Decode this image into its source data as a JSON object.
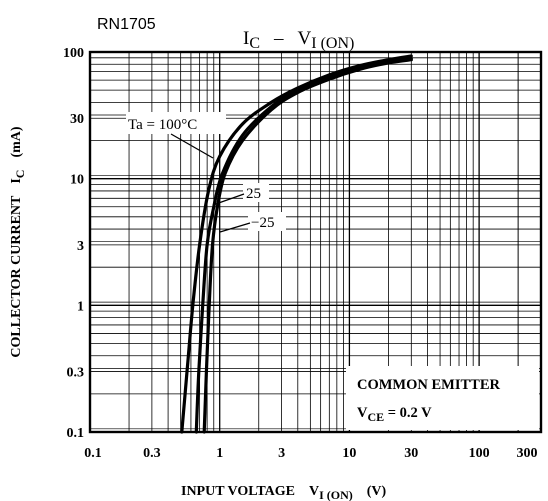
{
  "chart_data": {
    "type": "line",
    "part_number": "RN1705",
    "title": {
      "main": "I",
      "main_sub": "C",
      "dash": "–",
      "second": "V",
      "second_sub": "I (ON)"
    },
    "x_axis": {
      "label": "INPUT VOLTAGE",
      "symbol": "V",
      "symbol_sub": "I (ON)",
      "unit": "(V)",
      "scale": "log",
      "range": [
        0.1,
        300
      ],
      "ticks": [
        0.1,
        0.3,
        1,
        3,
        10,
        30,
        100,
        300
      ],
      "tick_labels": [
        "0.1",
        "0.3",
        "1",
        "3",
        "10",
        "30",
        "100",
        "300"
      ]
    },
    "y_axis": {
      "label": "COLLECTOR CURRENT",
      "symbol": "I",
      "symbol_sub": "C",
      "unit": "(mA)",
      "scale": "log",
      "range": [
        0.1,
        100
      ],
      "ticks": [
        0.1,
        0.3,
        1,
        3,
        10,
        30,
        100
      ],
      "tick_labels": [
        "0.1",
        "0.3",
        "1",
        "3",
        "10",
        "30",
        "100"
      ]
    },
    "grid": true,
    "series": [
      {
        "name": "Ta = 100°C",
        "points": [
          [
            0.51,
            0.1
          ],
          [
            0.56,
            0.3
          ],
          [
            0.62,
            1
          ],
          [
            0.7,
            3
          ],
          [
            0.82,
            8
          ],
          [
            1.0,
            15
          ],
          [
            1.5,
            27
          ],
          [
            2.5,
            40
          ],
          [
            4,
            52
          ],
          [
            7,
            66
          ],
          [
            12,
            78
          ],
          [
            20,
            87
          ],
          [
            30,
            93
          ]
        ]
      },
      {
        "name": "25",
        "points": [
          [
            0.66,
            0.1
          ],
          [
            0.69,
            0.3
          ],
          [
            0.74,
            1
          ],
          [
            0.8,
            3
          ],
          [
            0.9,
            6
          ],
          [
            1.05,
            11
          ],
          [
            1.5,
            22
          ],
          [
            2.5,
            37
          ],
          [
            4,
            50
          ],
          [
            7,
            63
          ],
          [
            12,
            75
          ],
          [
            20,
            84
          ],
          [
            30,
            89
          ]
        ]
      },
      {
        "name": "−25",
        "points": [
          [
            0.76,
            0.1
          ],
          [
            0.79,
            0.3
          ],
          [
            0.83,
            1
          ],
          [
            0.88,
            3
          ],
          [
            0.96,
            6
          ],
          [
            1.1,
            11
          ],
          [
            1.5,
            20
          ],
          [
            2.5,
            35
          ],
          [
            4,
            48
          ],
          [
            7,
            61
          ],
          [
            12,
            73
          ],
          [
            20,
            82
          ],
          [
            30,
            87
          ]
        ]
      }
    ],
    "annotations": [
      {
        "text": "Ta = 100°C",
        "series": "Ta = 100°C"
      },
      {
        "text": "25",
        "series": "25"
      },
      {
        "text": "−25",
        "series": "−25"
      }
    ],
    "info_box": {
      "line1": "COMMON EMITTER",
      "line2_symbol": "V",
      "line2_sub": "CE",
      "line2_rest": " = 0.2 V"
    },
    "legend_placement": "bottom-right"
  }
}
